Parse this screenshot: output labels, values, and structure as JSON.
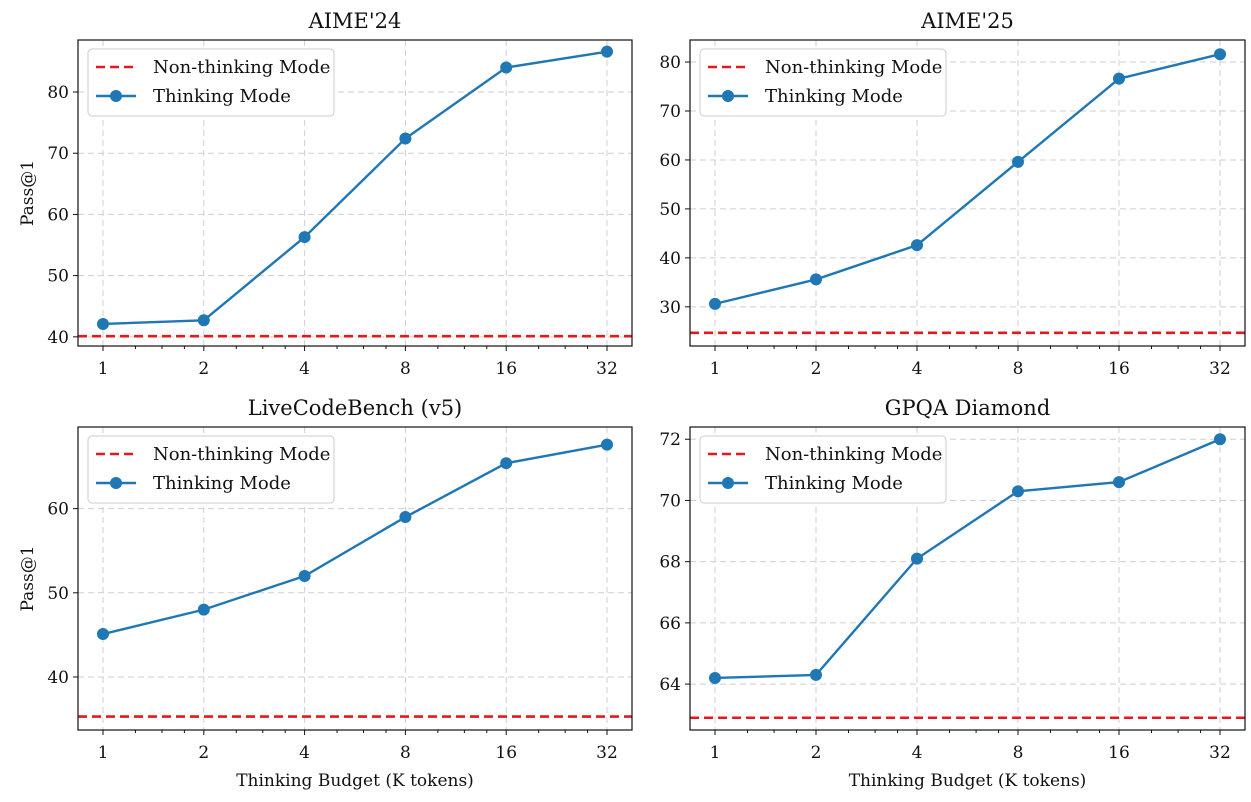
{
  "colors": {
    "non_thinking": "#e31a1c",
    "thinking": "#1f77b4"
  },
  "legend": {
    "non_thinking_label": "Non-thinking Mode",
    "thinking_label": "Thinking Mode"
  },
  "chart_data": [
    {
      "type": "line",
      "title": "AIME'24",
      "xlabel": "",
      "ylabel": "Pass@1",
      "x": [
        1,
        2,
        4,
        8,
        16,
        32
      ],
      "x_tick_labels": [
        "1",
        "2",
        "4",
        "8",
        "16",
        "32"
      ],
      "x_scale": "log2",
      "ylim": [
        38.5,
        88.5
      ],
      "y_ticks": [
        40,
        50,
        60,
        70,
        80
      ],
      "grid": true,
      "legend_position": "top-left",
      "series": [
        {
          "name": "Non-thinking Mode",
          "style": "dashed",
          "values": [
            40.1,
            40.1,
            40.1,
            40.1,
            40.1,
            40.1
          ]
        },
        {
          "name": "Thinking Mode",
          "style": "solid-markers",
          "values": [
            42.1,
            42.7,
            56.3,
            72.4,
            84.0,
            86.6
          ]
        }
      ]
    },
    {
      "type": "line",
      "title": "AIME'25",
      "xlabel": "",
      "ylabel": "",
      "x": [
        1,
        2,
        4,
        8,
        16,
        32
      ],
      "x_tick_labels": [
        "1",
        "2",
        "4",
        "8",
        "16",
        "32"
      ],
      "x_scale": "log2",
      "ylim": [
        22,
        84.5
      ],
      "y_ticks": [
        30,
        40,
        50,
        60,
        70,
        80
      ],
      "grid": true,
      "legend_position": "top-left",
      "series": [
        {
          "name": "Non-thinking Mode",
          "style": "dashed",
          "values": [
            24.7,
            24.7,
            24.7,
            24.7,
            24.7,
            24.7
          ]
        },
        {
          "name": "Thinking Mode",
          "style": "solid-markers",
          "values": [
            30.6,
            35.6,
            42.6,
            59.6,
            76.6,
            81.6
          ]
        }
      ]
    },
    {
      "type": "line",
      "title": "LiveCodeBench (v5)",
      "xlabel": "Thinking Budget (K tokens)",
      "ylabel": "Pass@1",
      "x": [
        1,
        2,
        4,
        8,
        16,
        32
      ],
      "x_tick_labels": [
        "1",
        "2",
        "4",
        "8",
        "16",
        "32"
      ],
      "x_scale": "log2",
      "ylim": [
        33.7,
        69.7
      ],
      "y_ticks": [
        40,
        50,
        60
      ],
      "grid": true,
      "legend_position": "top-left",
      "series": [
        {
          "name": "Non-thinking Mode",
          "style": "dashed",
          "values": [
            35.3,
            35.3,
            35.3,
            35.3,
            35.3,
            35.3
          ]
        },
        {
          "name": "Thinking Mode",
          "style": "solid-markers",
          "values": [
            45.1,
            48.0,
            52.0,
            59.0,
            65.4,
            67.6
          ]
        }
      ]
    },
    {
      "type": "line",
      "title": "GPQA Diamond",
      "xlabel": "Thinking Budget (K tokens)",
      "ylabel": "",
      "x": [
        1,
        2,
        4,
        8,
        16,
        32
      ],
      "x_tick_labels": [
        "1",
        "2",
        "4",
        "8",
        "16",
        "32"
      ],
      "x_scale": "log2",
      "ylim": [
        62.5,
        72.4
      ],
      "y_ticks": [
        64,
        66,
        68,
        70,
        72
      ],
      "grid": true,
      "legend_position": "top-left",
      "series": [
        {
          "name": "Non-thinking Mode",
          "style": "dashed",
          "values": [
            62.9,
            62.9,
            62.9,
            62.9,
            62.9,
            62.9
          ]
        },
        {
          "name": "Thinking Mode",
          "style": "solid-markers",
          "values": [
            64.2,
            64.3,
            68.1,
            70.3,
            70.6,
            72.0
          ]
        }
      ]
    }
  ]
}
